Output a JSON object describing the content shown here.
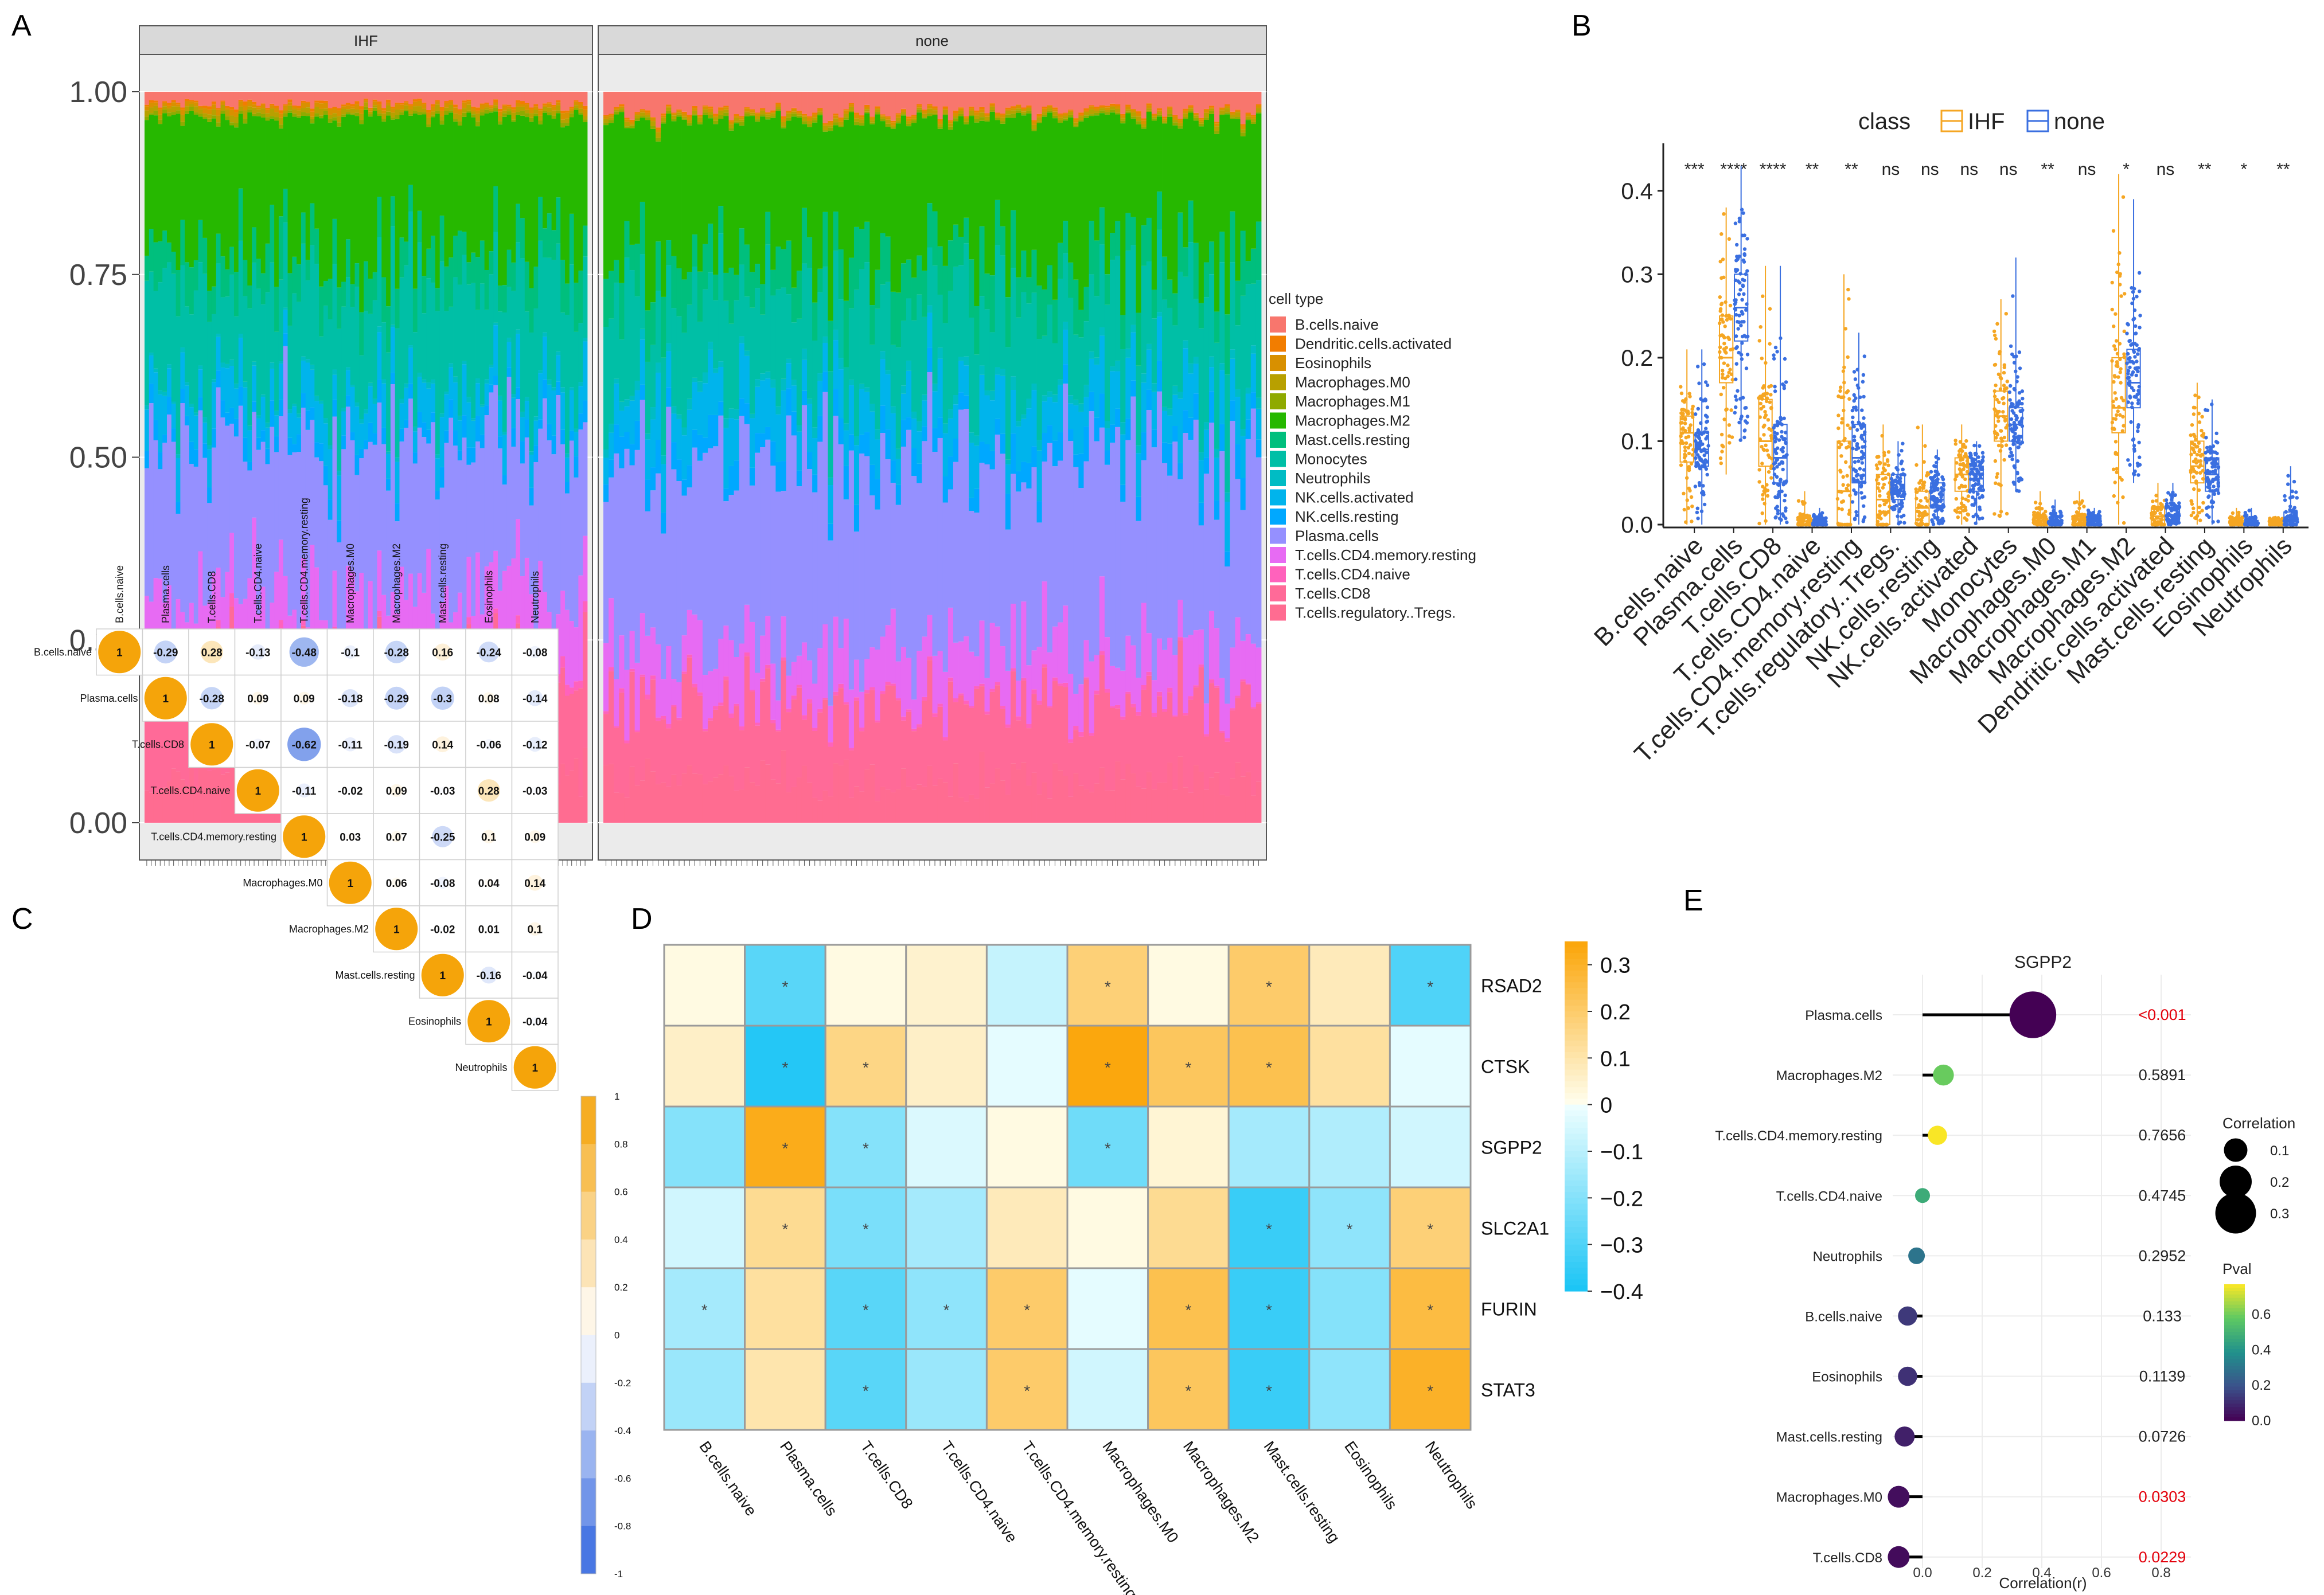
{
  "panels": {
    "a": "A",
    "b": "B",
    "c": "C",
    "d": "D",
    "e": "E"
  },
  "palette": {
    "B.cells.naive": "#F8766D",
    "Dendritic.cells.activated": "#F27D00",
    "Eosinophils": "#D89000",
    "Macrophages.M0": "#B8A000",
    "Macrophages.M1": "#8FAA00",
    "Macrophages.M2": "#26B800",
    "Mast.cells.resting": "#00BF7D",
    "Monocytes": "#00BFA6",
    "Neutrophils": "#00BCC4",
    "NK.cells.activated": "#00B4EC",
    "NK.cells.resting": "#00A8FF",
    "Plasma.cells": "#9590FF",
    "T.cells.CD4.memory.resting": "#E76BF3",
    "T.cells.CD4.naive": "#FF62BC",
    "T.cells.CD8": "#FF6A98",
    "T.cells.regulatory..Tregs.": "#FF6C91",
    "ihf": "#F5A623",
    "none": "#3A6FE0",
    "pos": "#FBA70D",
    "neg": "#19C4F5",
    "pval_sig": "#E3000B"
  },
  "chart_data": [
    {
      "id": "A",
      "type": "bar",
      "stacked": true,
      "facets": [
        "IHF",
        "none"
      ],
      "n_samples": [
        99,
        126
      ],
      "ylim": [
        0,
        1
      ],
      "yticks": [
        "0.00",
        "0.25",
        "0.50",
        "0.75",
        "1.00"
      ],
      "legend_title": "cell type",
      "series": [
        {
          "name": "B.cells.naive",
          "values": [
            0.016,
            0.026
          ]
        },
        {
          "name": "Dendritic.cells.activated",
          "values": [
            0.003,
            0.002
          ]
        },
        {
          "name": "Eosinophils",
          "values": [
            0.005,
            0.003
          ]
        },
        {
          "name": "Macrophages.M0",
          "values": [
            0.006,
            0.004
          ]
        },
        {
          "name": "Macrophages.M1",
          "values": [
            0.004,
            0.003
          ]
        },
        {
          "name": "Macrophages.M2",
          "values": [
            0.165,
            0.171
          ]
        },
        {
          "name": "Mast.cells.resting",
          "values": [
            0.05,
            0.055
          ]
        },
        {
          "name": "Monocytes",
          "values": [
            0.13,
            0.12
          ]
        },
        {
          "name": "Neutrophils",
          "values": [
            0.005,
            0.01
          ]
        },
        {
          "name": "NK.cells.activated",
          "values": [
            0.045,
            0.055
          ]
        },
        {
          "name": "NK.cells.resting",
          "values": [
            0.02,
            0.03
          ]
        },
        {
          "name": "Plasma.cells",
          "values": [
            0.21,
            0.24
          ]
        },
        {
          "name": "T.cells.CD4.memory.resting",
          "values": [
            0.1,
            0.07
          ]
        },
        {
          "name": "T.cells.CD4.naive",
          "values": [
            0.01,
            0.004
          ]
        },
        {
          "name": "T.cells.CD8",
          "values": [
            0.13,
            0.1
          ]
        },
        {
          "name": "T.cells.regulatory..Tregs.",
          "values": [
            0.06,
            0.055
          ]
        }
      ]
    },
    {
      "id": "B",
      "type": "box",
      "legend_title": "class",
      "groups": [
        "IHF",
        "none"
      ],
      "ylim": [
        0,
        0.45
      ],
      "yticks": [
        "0.0",
        "0.1",
        "0.2",
        "0.3",
        "0.4"
      ],
      "categories": [
        "B.cells.naive",
        "Plasma.cells",
        "T.cells.CD8",
        "T.cells.CD4.naive",
        "T.cells.CD4.memory.resting",
        "T.cells.regulatory..Tregs.",
        "NK.cells.resting",
        "NK.cells.activated",
        "Monocytes",
        "Macrophages.M0",
        "Macrophages.M1",
        "Macrophages.M2",
        "Dendritic.cells.activated",
        "Mast.cells.resting",
        "Eosinophils",
        "Neutrophils"
      ],
      "significance": [
        "***",
        "****",
        "****",
        "**",
        "**",
        "ns",
        "ns",
        "ns",
        "ns",
        "**",
        "ns",
        "*",
        "ns",
        "**",
        "*",
        "**"
      ],
      "series": [
        {
          "name": "IHF",
          "q1": [
            0.075,
            0.17,
            0.07,
            0,
            0,
            0,
            0,
            0.04,
            0.1,
            0,
            0,
            0.11,
            0,
            0.05,
            0,
            0
          ],
          "median": [
            0.11,
            0.2,
            0.1,
            0,
            0.04,
            0.03,
            0.02,
            0.06,
            0.13,
            0,
            0,
            0.14,
            0.01,
            0.07,
            0,
            0
          ],
          "q3": [
            0.13,
            0.25,
            0.15,
            0.008,
            0.1,
            0.06,
            0.04,
            0.08,
            0.16,
            0.01,
            0.01,
            0.2,
            0.02,
            0.1,
            0.005,
            0.005
          ],
          "min": [
            0,
            0.06,
            0,
            0,
            0,
            0,
            0,
            0,
            0.01,
            0,
            0,
            0,
            0,
            0,
            0,
            0
          ],
          "max": [
            0.21,
            0.38,
            0.31,
            0.04,
            0.3,
            0.12,
            0.12,
            0.12,
            0.27,
            0.04,
            0.04,
            0.42,
            0.05,
            0.17,
            0.02,
            0.01
          ]
        },
        {
          "name": "none",
          "q1": [
            0.07,
            0.22,
            0.05,
            0,
            0.05,
            0.03,
            0.02,
            0.04,
            0.1,
            0,
            0,
            0.14,
            0.005,
            0.04,
            0,
            0
          ],
          "median": [
            0.09,
            0.26,
            0.08,
            0,
            0.08,
            0.04,
            0.03,
            0.055,
            0.12,
            0,
            0,
            0.17,
            0.01,
            0.06,
            0,
            0.005
          ],
          "q3": [
            0.11,
            0.3,
            0.12,
            0.005,
            0.12,
            0.06,
            0.05,
            0.07,
            0.14,
            0.005,
            0.008,
            0.21,
            0.02,
            0.08,
            0.005,
            0.015
          ],
          "min": [
            0,
            0.1,
            0,
            0,
            0,
            0,
            0,
            0,
            0.04,
            0,
            0,
            0.05,
            0,
            0,
            0,
            0
          ],
          "max": [
            0.21,
            0.43,
            0.31,
            0.02,
            0.23,
            0.1,
            0.09,
            0.1,
            0.32,
            0.03,
            0.02,
            0.39,
            0.05,
            0.15,
            0.02,
            0.07
          ]
        }
      ]
    },
    {
      "id": "C",
      "type": "heatmap",
      "subtype": "correlation-upper-triangle",
      "labels": [
        "B.cells.naive",
        "Plasma.cells",
        "T.cells.CD8",
        "T.cells.CD4.naive",
        "T.cells.CD4.memory.resting",
        "Macrophages.M0",
        "Macrophages.M2",
        "Mast.cells.resting",
        "Eosinophils",
        "Neutrophils"
      ],
      "matrix": [
        [
          1,
          -0.29,
          0.28,
          -0.13,
          -0.48,
          -0.1,
          -0.28,
          0.16,
          -0.24,
          -0.08
        ],
        [
          null,
          1,
          -0.28,
          0.09,
          0.09,
          -0.18,
          -0.29,
          -0.3,
          0.08,
          -0.14
        ],
        [
          null,
          null,
          1,
          -0.07,
          -0.62,
          -0.11,
          -0.19,
          0.14,
          -0.06,
          -0.12
        ],
        [
          null,
          null,
          null,
          1,
          -0.11,
          -0.02,
          0.09,
          -0.03,
          0.28,
          -0.03
        ],
        [
          null,
          null,
          null,
          null,
          1,
          0.03,
          0.07,
          -0.25,
          0.1,
          0.09
        ],
        [
          null,
          null,
          null,
          null,
          null,
          1,
          0.06,
          -0.08,
          0.04,
          0.14
        ],
        [
          null,
          null,
          null,
          null,
          null,
          null,
          1,
          -0.02,
          0.01,
          0.1
        ],
        [
          null,
          null,
          null,
          null,
          null,
          null,
          null,
          1,
          -0.16,
          -0.04
        ],
        [
          null,
          null,
          null,
          null,
          null,
          null,
          null,
          null,
          1,
          -0.04
        ],
        [
          null,
          null,
          null,
          null,
          null,
          null,
          null,
          null,
          null,
          1
        ]
      ],
      "colorbar_range": [
        -1,
        1
      ],
      "colorbar_ticks": [
        "1",
        "0.8",
        "0.6",
        "0.4",
        "0.2",
        "0",
        "-0.2",
        "-0.4",
        "-0.6",
        "-0.8",
        "-1"
      ]
    },
    {
      "id": "D",
      "type": "heatmap",
      "rows": [
        "RSAD2",
        "CTSK",
        "SGPP2",
        "SLC2A1",
        "FURIN",
        "STAT3"
      ],
      "cols": [
        "B.cells.naive",
        "Plasma.cells",
        "T.cells.CD8",
        "T.cells.CD4.naive",
        "T.cells.CD4.memory.resting",
        "Macrophages.M0",
        "Macrophages.M2",
        "Mast.cells.resting",
        "Eosinophils",
        "Neutrophils"
      ],
      "values": [
        [
          0.02,
          -0.28,
          0.02,
          0.05,
          -0.08,
          0.18,
          0.02,
          0.2,
          0.08,
          -0.3
        ],
        [
          0.06,
          -0.38,
          0.16,
          0.06,
          -0.02,
          0.34,
          0.22,
          0.24,
          0.12,
          -0.02
        ],
        [
          -0.2,
          0.32,
          -0.2,
          -0.04,
          0.02,
          -0.24,
          0.04,
          -0.14,
          -0.12,
          -0.06
        ],
        [
          -0.06,
          0.14,
          -0.22,
          -0.14,
          0.08,
          0.02,
          0.14,
          -0.34,
          -0.18,
          0.18
        ],
        [
          -0.14,
          0.12,
          -0.28,
          -0.18,
          0.2,
          -0.02,
          0.24,
          -0.34,
          -0.2,
          0.26
        ],
        [
          -0.16,
          0.1,
          -0.28,
          -0.16,
          0.2,
          -0.06,
          0.22,
          -0.34,
          -0.18,
          0.3
        ]
      ],
      "stars": [
        [
          0,
          1,
          0,
          0,
          0,
          1,
          0,
          1,
          0,
          1
        ],
        [
          0,
          1,
          1,
          0,
          0,
          1,
          1,
          1,
          0,
          0
        ],
        [
          0,
          1,
          1,
          0,
          0,
          1,
          0,
          0,
          0,
          0
        ],
        [
          0,
          1,
          1,
          0,
          0,
          0,
          0,
          1,
          1,
          1
        ],
        [
          1,
          0,
          1,
          1,
          1,
          0,
          1,
          1,
          0,
          1
        ],
        [
          0,
          0,
          1,
          0,
          1,
          0,
          1,
          1,
          0,
          1
        ]
      ],
      "star_label": "*",
      "colorbar_range": [
        -0.4,
        0.35
      ],
      "colorbar_ticks": [
        0.3,
        0.2,
        0.1,
        0,
        -0.1,
        -0.2,
        -0.3,
        -0.4
      ],
      "colorbar_tick_labels": [
        "0.3",
        "0.2",
        "0.1",
        "0",
        "−0.1",
        "−0.2",
        "−0.3",
        "−0.4"
      ]
    },
    {
      "id": "E",
      "type": "lollipop",
      "title": "SGPP2",
      "xlabel": "Correlation(r)",
      "xlim": [
        -0.1,
        0.9
      ],
      "xticks": [
        "0.0",
        "0.2",
        "0.4",
        "0.6",
        "0.8"
      ],
      "categories": [
        "Plasma.cells",
        "Macrophages.M2",
        "T.cells.CD4.memory.resting",
        "T.cells.CD4.naive",
        "Neutrophils",
        "B.cells.naive",
        "Eosinophils",
        "Mast.cells.resting",
        "Macrophages.M0",
        "T.cells.CD8"
      ],
      "values": [
        0.37,
        0.07,
        0.05,
        0.0,
        -0.02,
        -0.05,
        -0.05,
        -0.06,
        -0.08,
        -0.08
      ],
      "pvals": [
        0.0005,
        0.5891,
        0.7656,
        0.4745,
        0.2952,
        0.133,
        0.1139,
        0.0726,
        0.0303,
        0.0229
      ],
      "pval_labels": [
        "<0.001",
        "0.5891",
        "0.7656",
        "0.4745",
        "0.2952",
        "0.133",
        "0.1139",
        "0.0726",
        "0.0303",
        "0.0229"
      ],
      "pval_significant": [
        true,
        false,
        false,
        false,
        false,
        false,
        false,
        false,
        true,
        true
      ],
      "size_legend_title": "Correlation",
      "size_legend": [
        "0.1",
        "0.2",
        "0.3"
      ],
      "color_legend_title": "Pval",
      "color_legend": [
        "0.6",
        "0.4",
        "0.2",
        "0.0"
      ]
    }
  ]
}
